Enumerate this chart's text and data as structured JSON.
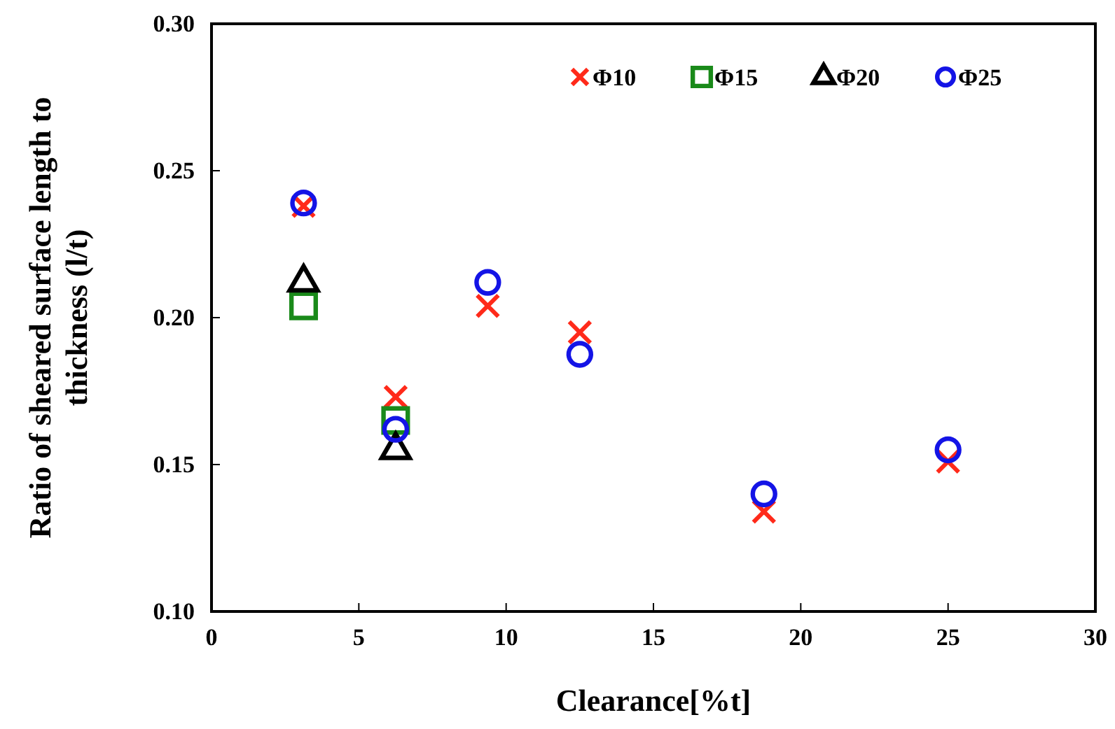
{
  "chart_data": {
    "type": "scatter",
    "xlabel": "Clearance[%t]",
    "ylabel": "Ratio of sheared surface length to thickness (l/t)",
    "xlim": [
      0,
      30
    ],
    "xticks": [
      0,
      5,
      10,
      15,
      20,
      25,
      30
    ],
    "ylim": [
      0.1,
      0.3
    ],
    "yticks": [
      {
        "value": 0.1,
        "label": "0.10"
      },
      {
        "value": 0.15,
        "label": "0.15"
      },
      {
        "value": 0.2,
        "label": "0.20"
      },
      {
        "value": 0.25,
        "label": "0.25"
      },
      {
        "value": 0.3,
        "label": "0.30"
      }
    ],
    "grid": false,
    "legend": "top right",
    "series": [
      {
        "name": "Φ10",
        "color": "#ff2a1a",
        "marker": "cross",
        "x": [
          3.125,
          6.25,
          9.375,
          12.5,
          18.75,
          25
        ],
        "values": [
          0.238,
          0.173,
          0.204,
          0.195,
          0.134,
          0.151
        ]
      },
      {
        "name": "Φ15",
        "color": "#1a8a1a",
        "marker": "square",
        "x": [
          3.125,
          6.25
        ],
        "values": [
          0.204,
          0.165
        ]
      },
      {
        "name": "Φ20",
        "color": "#000000",
        "marker": "triangle",
        "x": [
          3.125,
          6.25
        ],
        "values": [
          0.212,
          0.155
        ]
      },
      {
        "name": "Φ25",
        "color": "#1414e6",
        "marker": "circle",
        "x": [
          3.125,
          6.25,
          9.375,
          12.5,
          18.75,
          25
        ],
        "values": [
          0.239,
          0.162,
          0.212,
          0.1875,
          0.14,
          0.155
        ]
      }
    ]
  }
}
